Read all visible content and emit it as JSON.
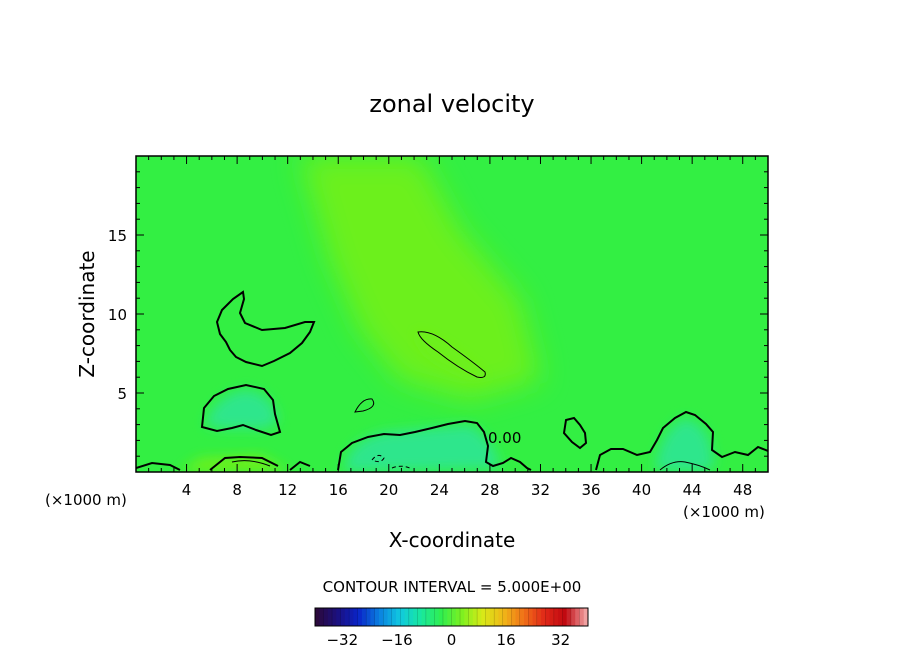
{
  "chart_data": {
    "type": "heatmap",
    "title": "zonal velocity",
    "xlabel": "X-coordinate",
    "ylabel": "Z-coordinate",
    "x_unit_left": "(×1000 m)",
    "x_unit_right": "(×1000 m)",
    "xlim": [
      0,
      50
    ],
    "ylim": [
      0,
      20
    ],
    "x_ticks": [
      4,
      8,
      12,
      16,
      20,
      24,
      28,
      32,
      36,
      40,
      44,
      48
    ],
    "y_ticks": [
      5,
      10,
      15
    ],
    "contour_interval_label": "CONTOUR INTERVAL = 5.000E+00",
    "contour_label": "0.00",
    "colorbar": {
      "min": -40,
      "max": 40,
      "ticks": [
        -32,
        -16,
        0,
        16,
        32
      ],
      "colors": [
        "#2b0a3d",
        "#1b1080",
        "#0a24c8",
        "#0a7fe0",
        "#10c8e0",
        "#18e8a0",
        "#30ee50",
        "#7ef020",
        "#d8ea18",
        "#f0b818",
        "#f07018",
        "#e02818",
        "#c00810",
        "#f0a0a0"
      ]
    },
    "field_colors": {
      "background": "#33ef43",
      "positive": "#6cf01e",
      "negative": "#2ee68c"
    }
  }
}
